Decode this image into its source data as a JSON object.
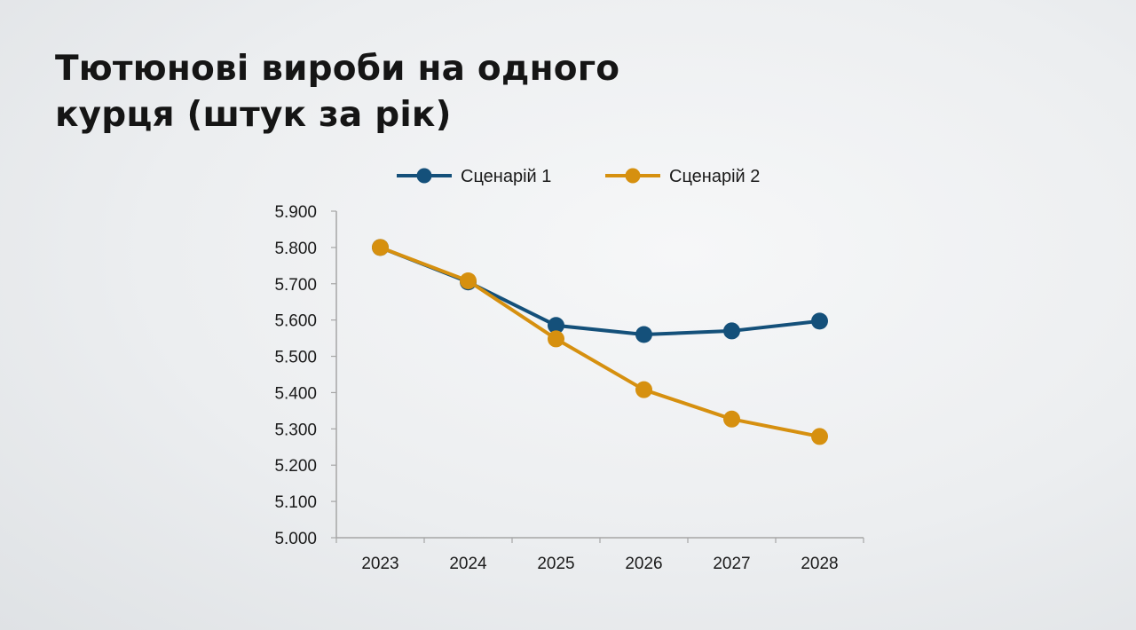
{
  "slide": {
    "title_line1": "Тютюнові вироби на одного",
    "title_line2": "курця (штук за рік)"
  },
  "chart_data": {
    "type": "line",
    "title": "Тютюнові вироби на одного курця (штук за рік)",
    "x": [
      "2023",
      "2024",
      "2025",
      "2026",
      "2027",
      "2028"
    ],
    "ylim": [
      5.0,
      5.9
    ],
    "y_ticks": [
      {
        "value": 5.0,
        "label": "5.000"
      },
      {
        "value": 5.1,
        "label": "5.100"
      },
      {
        "value": 5.2,
        "label": "5.200"
      },
      {
        "value": 5.3,
        "label": "5.300"
      },
      {
        "value": 5.4,
        "label": "5.400"
      },
      {
        "value": 5.5,
        "label": "5.500"
      },
      {
        "value": 5.6,
        "label": "5.600"
      },
      {
        "value": 5.7,
        "label": "5.700"
      },
      {
        "value": 5.8,
        "label": "5.800"
      },
      {
        "value": 5.9,
        "label": "5.900"
      }
    ],
    "series": [
      {
        "name": "Сценарій 1",
        "color": "#14507a",
        "values": [
          5.8,
          5.705,
          5.585,
          5.56,
          5.57,
          5.597
        ]
      },
      {
        "name": "Сценарій 2",
        "color": "#d6900f",
        "values": [
          5.8,
          5.708,
          5.548,
          5.408,
          5.327,
          5.279
        ]
      }
    ],
    "legend_position": "top",
    "grid": false
  }
}
